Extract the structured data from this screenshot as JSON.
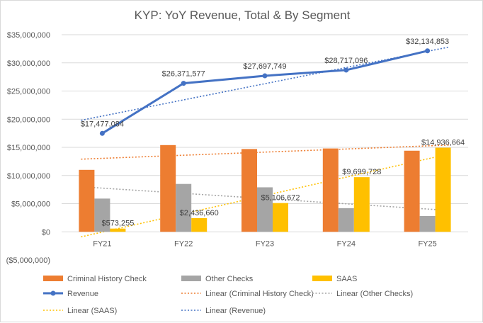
{
  "chart_data": {
    "type": "bar",
    "title": "KYP: YoY Revenue, Total & By Segment",
    "categories": [
      "FY21",
      "FY22",
      "FY23",
      "FY24",
      "FY25"
    ],
    "ylim": [
      -5000000,
      35000000
    ],
    "ytick_step": 5000000,
    "y_tick_labels": [
      "($5,000,000)",
      "$0",
      "$5,000,000",
      "$10,000,000",
      "$15,000,000",
      "$20,000,000",
      "$25,000,000",
      "$30,000,000",
      "$35,000,000"
    ],
    "grid": true,
    "legend_position": "bottom",
    "series": [
      {
        "name": "Criminal History Check",
        "kind": "bar",
        "color": "#ED7D31",
        "values": [
          11000000,
          15400000,
          14700000,
          14800000,
          14400000
        ]
      },
      {
        "name": "Other Checks",
        "kind": "bar",
        "color": "#A5A5A5",
        "values": [
          5900000,
          8500000,
          7900000,
          4200000,
          2800000
        ]
      },
      {
        "name": "SAAS",
        "kind": "bar",
        "color": "#FFC000",
        "values": [
          573255,
          2436660,
          5106672,
          9699728,
          14936664
        ],
        "labels": [
          "$573,255",
          "$2,436,660",
          "$5,106,672",
          "$9,699,728",
          "$14,936,664"
        ]
      },
      {
        "name": "Revenue",
        "kind": "line",
        "color": "#4472C4",
        "values": [
          17477084,
          26371577,
          27697749,
          28717096,
          32134853
        ],
        "labels": [
          "$17,477,084",
          "$26,371,577",
          "$27,697,749",
          "$28,717,096",
          "$32,134,853"
        ]
      }
    ],
    "trendlines": [
      {
        "name": "Linear (Criminal History Check)",
        "color": "#ED7D31",
        "start": 12900000,
        "end": 15400000
      },
      {
        "name": "Linear (Other Checks)",
        "color": "#A5A5A5",
        "start": 8000000,
        "end": 3800000
      },
      {
        "name": "Linear (SAAS)",
        "color": "#FFC000",
        "start": -900000,
        "end": 13800000
      },
      {
        "name": "Linear (Revenue)",
        "color": "#4472C4",
        "start": 19800000,
        "end": 32800000
      }
    ]
  }
}
